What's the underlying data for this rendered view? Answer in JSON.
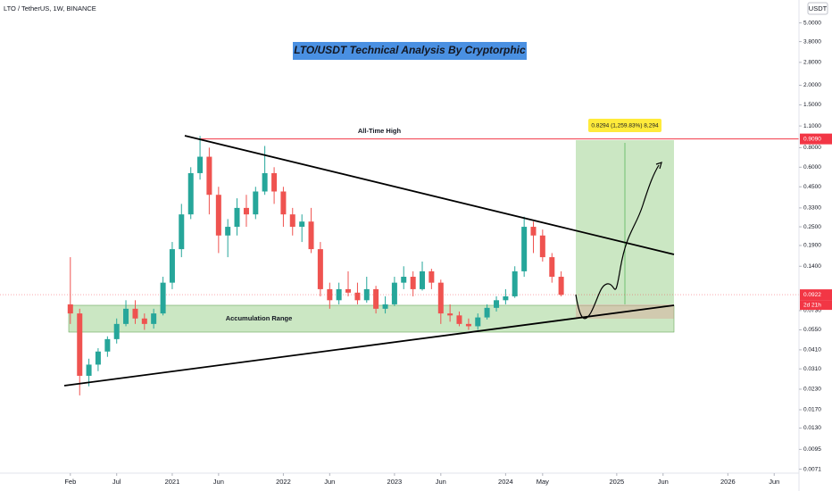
{
  "chart_data": {
    "type": "candlestick",
    "header": "LTO / TetherUS, 1W, BINANCE",
    "currency": "USDT",
    "title": "LTO/USDT Technical Analysis By Cryptorphic",
    "annotations": {
      "ath": "All-Time High",
      "range": "Accumulation Range",
      "target": "0.8294 (1,259.83%) 8,294",
      "countdown": "2d 21h"
    },
    "price_markers": [
      {
        "value": 0.909,
        "label": "0.9090",
        "color": "#f23645"
      },
      {
        "value": 0.0922,
        "label": "0.0922",
        "color": "#f23645"
      }
    ],
    "log_scale": true,
    "up_color": "#26a69a",
    "down_color": "#ef5350",
    "x": [
      2020.083,
      2020.167,
      2020.25,
      2020.333,
      2020.417,
      2020.5,
      2020.583,
      2020.667,
      2020.75,
      2020.833,
      2020.917,
      2021.0,
      2021.083,
      2021.167,
      2021.25,
      2021.333,
      2021.417,
      2021.5,
      2021.583,
      2021.667,
      2021.75,
      2021.833,
      2021.917,
      2022.0,
      2022.083,
      2022.167,
      2022.25,
      2022.333,
      2022.417,
      2022.5,
      2022.583,
      2022.667,
      2022.75,
      2022.833,
      2022.917,
      2023.0,
      2023.083,
      2023.167,
      2023.25,
      2023.333,
      2023.417,
      2023.5,
      2023.583,
      2023.667,
      2023.75,
      2023.833,
      2023.917,
      2024.0,
      2024.083,
      2024.167,
      2024.25,
      2024.333,
      2024.417,
      2024.5
    ],
    "open": [
      0.08,
      0.07,
      0.028,
      0.033,
      0.04,
      0.048,
      0.06,
      0.075,
      0.065,
      0.06,
      0.07,
      0.11,
      0.18,
      0.3,
      0.55,
      0.7,
      0.4,
      0.22,
      0.25,
      0.33,
      0.3,
      0.42,
      0.55,
      0.42,
      0.3,
      0.25,
      0.27,
      0.18,
      0.1,
      0.085,
      0.1,
      0.095,
      0.085,
      0.1,
      0.075,
      0.08,
      0.11,
      0.12,
      0.1,
      0.13,
      0.11,
      0.07,
      0.068,
      0.06,
      0.058,
      0.066,
      0.076,
      0.085,
      0.09,
      0.13,
      0.25,
      0.22,
      0.16,
      0.12
    ],
    "high": [
      0.16,
      0.075,
      0.036,
      0.042,
      0.05,
      0.065,
      0.085,
      0.085,
      0.07,
      0.075,
      0.12,
      0.2,
      0.35,
      0.6,
      0.95,
      0.8,
      0.45,
      0.28,
      0.38,
      0.4,
      0.45,
      0.82,
      0.6,
      0.45,
      0.33,
      0.3,
      0.33,
      0.2,
      0.11,
      0.11,
      0.13,
      0.11,
      0.12,
      0.105,
      0.09,
      0.12,
      0.14,
      0.13,
      0.15,
      0.135,
      0.115,
      0.08,
      0.072,
      0.065,
      0.07,
      0.08,
      0.09,
      0.1,
      0.14,
      0.29,
      0.27,
      0.24,
      0.17,
      0.13
    ],
    "low": [
      0.06,
      0.021,
      0.024,
      0.03,
      0.037,
      0.045,
      0.058,
      0.06,
      0.055,
      0.056,
      0.068,
      0.1,
      0.16,
      0.28,
      0.5,
      0.3,
      0.17,
      0.16,
      0.22,
      0.25,
      0.28,
      0.4,
      0.35,
      0.25,
      0.22,
      0.2,
      0.17,
      0.09,
      0.075,
      0.08,
      0.09,
      0.08,
      0.082,
      0.07,
      0.07,
      0.078,
      0.1,
      0.09,
      0.098,
      0.1,
      0.06,
      0.062,
      0.058,
      0.055,
      0.055,
      0.064,
      0.072,
      0.08,
      0.088,
      0.12,
      0.17,
      0.15,
      0.11,
      0.09
    ],
    "close": [
      0.07,
      0.028,
      0.033,
      0.04,
      0.048,
      0.06,
      0.075,
      0.065,
      0.06,
      0.07,
      0.11,
      0.18,
      0.3,
      0.55,
      0.7,
      0.4,
      0.22,
      0.25,
      0.33,
      0.3,
      0.42,
      0.55,
      0.42,
      0.3,
      0.25,
      0.27,
      0.18,
      0.1,
      0.085,
      0.1,
      0.095,
      0.085,
      0.1,
      0.075,
      0.08,
      0.11,
      0.12,
      0.1,
      0.13,
      0.11,
      0.07,
      0.068,
      0.06,
      0.058,
      0.066,
      0.076,
      0.085,
      0.09,
      0.13,
      0.25,
      0.22,
      0.16,
      0.12,
      0.092
    ],
    "xlim": [
      2019.45,
      2026.64
    ],
    "xticks": [
      {
        "value": 2020.083,
        "label": "Feb"
      },
      {
        "value": 2020.5,
        "label": "Jul"
      },
      {
        "value": 2021.0,
        "label": "2021"
      },
      {
        "value": 2021.417,
        "label": "Jun"
      },
      {
        "value": 2022.0,
        "label": "2022"
      },
      {
        "value": 2022.417,
        "label": "Jun"
      },
      {
        "value": 2023.0,
        "label": "2023"
      },
      {
        "value": 2023.417,
        "label": "Jun"
      },
      {
        "value": 2024.0,
        "label": "2024"
      },
      {
        "value": 2024.333,
        "label": "May"
      },
      {
        "value": 2025.0,
        "label": "2025"
      },
      {
        "value": 2025.417,
        "label": "Jun"
      },
      {
        "value": 2026.0,
        "label": "2026"
      },
      {
        "value": 2026.417,
        "label": "Jun"
      }
    ],
    "ylim": [
      0.0067,
      7.0
    ],
    "yticks": [
      {
        "value": 5,
        "label": "5.0000"
      },
      {
        "value": 3.8,
        "label": "3.8000"
      },
      {
        "value": 2.8,
        "label": "2.8000"
      },
      {
        "value": 2,
        "label": "2.0000"
      },
      {
        "value": 1.5,
        "label": "1.5000"
      },
      {
        "value": 1.1,
        "label": "1.1000"
      },
      {
        "value": 0.8,
        "label": "0.8000"
      },
      {
        "value": 0.6,
        "label": "0.6000"
      },
      {
        "value": 0.45,
        "label": "0.4500"
      },
      {
        "value": 0.33,
        "label": "0.3300"
      },
      {
        "value": 0.25,
        "label": "0.2500"
      },
      {
        "value": 0.19,
        "label": "0.1900"
      },
      {
        "value": 0.14,
        "label": "0.1400"
      },
      {
        "value": 0.073,
        "label": "0.0730"
      },
      {
        "value": 0.055,
        "label": "0.0550"
      },
      {
        "value": 0.041,
        "label": "0.0410"
      },
      {
        "value": 0.031,
        "label": "0.0310"
      },
      {
        "value": 0.023,
        "label": "0.0230"
      },
      {
        "value": 0.017,
        "label": "0.0170"
      },
      {
        "value": 0.013,
        "label": "0.0130"
      },
      {
        "value": 0.0095,
        "label": "0.0095"
      },
      {
        "value": 0.0071,
        "label": "0.0071"
      }
    ]
  }
}
